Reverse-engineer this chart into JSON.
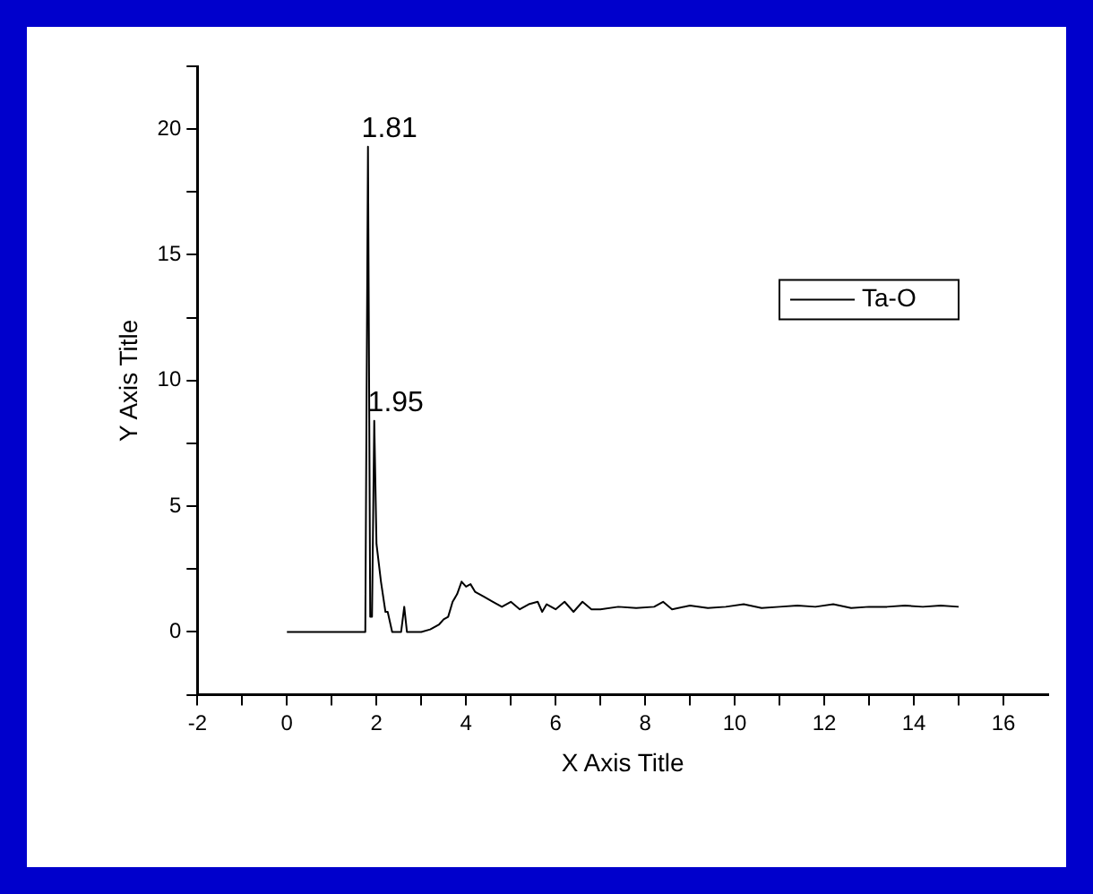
{
  "chart_data": {
    "type": "line",
    "xlabel": "X Axis Title",
    "ylabel": "Y Axis Title",
    "xlim": [
      -2,
      17
    ],
    "ylim": [
      -2.5,
      22.5
    ],
    "xticks": [
      -2,
      {
        "value": -1,
        "label": null
      },
      0,
      {
        "value": 1,
        "label": null
      },
      2,
      {
        "value": 3,
        "label": null
      },
      4,
      {
        "value": 5,
        "label": null
      },
      6,
      {
        "value": 7,
        "label": null
      },
      8,
      {
        "value": 9,
        "label": null
      },
      10,
      {
        "value": 11,
        "label": null
      },
      12,
      {
        "value": 13,
        "label": null
      },
      14,
      {
        "value": 15,
        "label": null
      },
      16
    ],
    "yticks": [
      {
        "value": -2.5,
        "label": null
      },
      0,
      {
        "value": 2.5,
        "label": null
      },
      5,
      {
        "value": 7.5,
        "label": null
      },
      10,
      {
        "value": 12.5,
        "label": null
      },
      15,
      {
        "value": 17.5,
        "label": null
      },
      20,
      {
        "value": 22.5,
        "label": null
      }
    ],
    "grid": false,
    "legend": "top right",
    "marker": "none",
    "line_style": "solid",
    "annotations": [
      {
        "text": "1.81",
        "x": 1.81,
        "y": 19.3
      },
      {
        "text": "1.95",
        "x": 1.95,
        "y": 8.4
      }
    ],
    "series": [
      {
        "name": "Ta-O",
        "color": "#000000",
        "x": [
          0,
          1.75,
          1.81,
          1.86,
          1.9,
          1.95,
          2.0,
          2.1,
          2.2,
          2.25,
          2.35,
          2.55,
          2.62,
          2.68,
          3.0,
          3.2,
          3.4,
          3.5,
          3.6,
          3.7,
          3.8,
          3.9,
          4.0,
          4.1,
          4.2,
          4.4,
          4.6,
          4.8,
          5.0,
          5.2,
          5.4,
          5.6,
          5.7,
          5.8,
          6.0,
          6.2,
          6.4,
          6.6,
          6.8,
          7.0,
          7.4,
          7.8,
          8.2,
          8.4,
          8.6,
          9.0,
          9.4,
          9.8,
          10.2,
          10.6,
          11.0,
          11.4,
          11.8,
          12.2,
          12.6,
          13.0,
          13.4,
          13.8,
          14.2,
          14.6,
          15.0
        ],
        "values": [
          0,
          0,
          19.3,
          0.6,
          0.6,
          8.4,
          3.5,
          2.0,
          0.8,
          0.8,
          0,
          0,
          1.0,
          0,
          0,
          0.1,
          0.3,
          0.5,
          0.6,
          1.2,
          1.5,
          2.0,
          1.8,
          1.9,
          1.6,
          1.4,
          1.2,
          1.0,
          1.2,
          0.9,
          1.1,
          1.2,
          0.8,
          1.1,
          0.9,
          1.2,
          0.8,
          1.2,
          0.9,
          0.9,
          1.0,
          0.95,
          1.0,
          1.2,
          0.9,
          1.05,
          0.95,
          1.0,
          1.1,
          0.95,
          1.0,
          1.05,
          1.0,
          1.1,
          0.95,
          1.0,
          1.0,
          1.05,
          1.0,
          1.05,
          1.0
        ]
      }
    ]
  }
}
